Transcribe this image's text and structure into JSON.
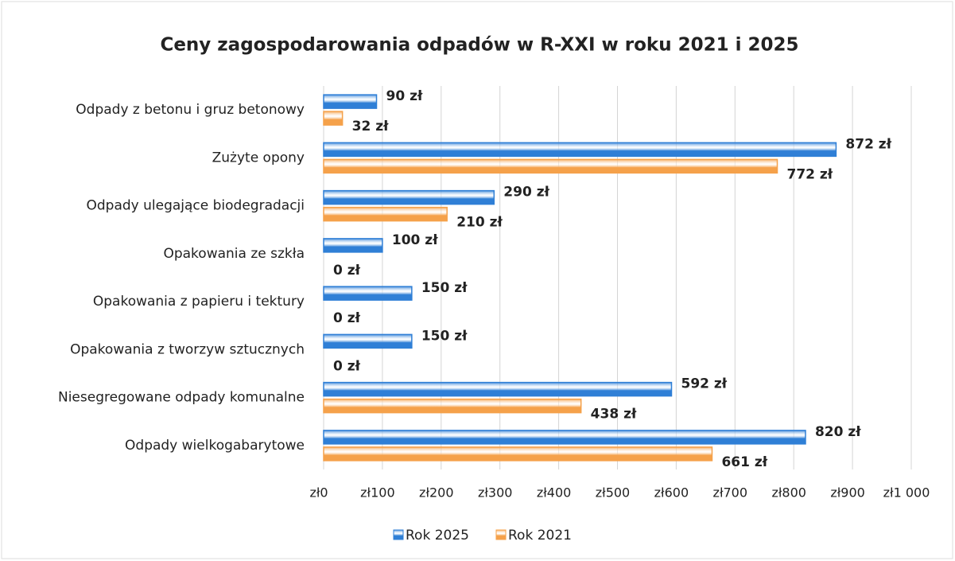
{
  "chart_data": {
    "type": "bar",
    "orientation": "horizontal",
    "title": "Ceny zagospodarowania odpadów w R-XXI w roku 2021 i 2025",
    "categories": [
      "Odpady z betonu i gruz betonowy",
      "Zużyte opony",
      "Odpady ulegające biodegradacji",
      "Opakowania ze szkła",
      "Opakowania z papieru i tektury",
      "Opakowania z tworzyw sztucznych",
      "Niesegregowane odpady komunalne",
      "Odpady wielkogabarytowe"
    ],
    "series": [
      {
        "name": "Rok 2025",
        "color": "#2f7fd6",
        "values": [
          90,
          872,
          290,
          100,
          150,
          150,
          592,
          820
        ],
        "value_labels": [
          "90 zł",
          "872 zł",
          "290 zł",
          "100 zł",
          "150 zł",
          "150 zł",
          "592 zł",
          "820 zł"
        ]
      },
      {
        "name": "Rok 2021",
        "color": "#f5a14a",
        "values": [
          32,
          772,
          210,
          0,
          0,
          0,
          438,
          661
        ],
        "value_labels": [
          "32 zł",
          "772 zł",
          "210 zł",
          "0 zł",
          "0 zł",
          "0 zł",
          "438 zł",
          "661 zł"
        ]
      }
    ],
    "xlim": [
      0,
      1000
    ],
    "xticks": [
      {
        "value": 0,
        "label": "zł0"
      },
      {
        "value": 100,
        "label": "zł100"
      },
      {
        "value": 200,
        "label": "zł200"
      },
      {
        "value": 300,
        "label": "zł300"
      },
      {
        "value": 400,
        "label": "zł400"
      },
      {
        "value": 500,
        "label": "zł500"
      },
      {
        "value": 600,
        "label": "zł600"
      },
      {
        "value": 700,
        "label": "zł700"
      },
      {
        "value": 800,
        "label": "zł800"
      },
      {
        "value": 900,
        "label": "zł900"
      },
      {
        "value": 1000,
        "label": "zł1 000"
      }
    ],
    "grid": true,
    "legend": "bottom"
  }
}
